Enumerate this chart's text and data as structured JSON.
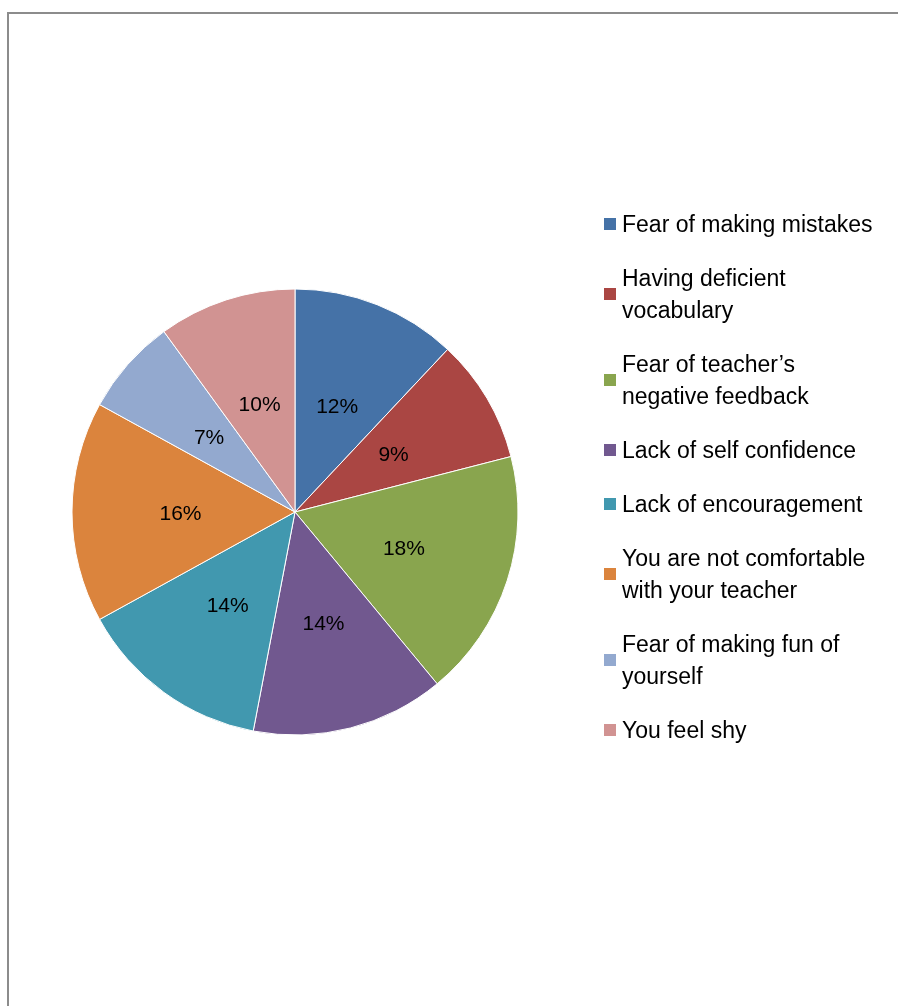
{
  "chart_data": {
    "type": "pie",
    "categories": [
      "Fear of making mistakes",
      "Having deficient vocabulary",
      "Fear of teacher’s negative feedback",
      "Lack of self confidence",
      "Lack of encouragement",
      "You are not comfortable with your teacher",
      "Fear of making fun of yourself",
      "You feel shy"
    ],
    "values": [
      12,
      9,
      18,
      14,
      14,
      16,
      7,
      10
    ],
    "colors": [
      "#4572a7",
      "#aa4643",
      "#89a54e",
      "#71588f",
      "#4198af",
      "#db843d",
      "#93a9cf",
      "#d19392"
    ],
    "value_labels": [
      "12%",
      "9%",
      "18%",
      "14%",
      "14%",
      "16%",
      "7%",
      "10%"
    ],
    "legend": "right"
  }
}
